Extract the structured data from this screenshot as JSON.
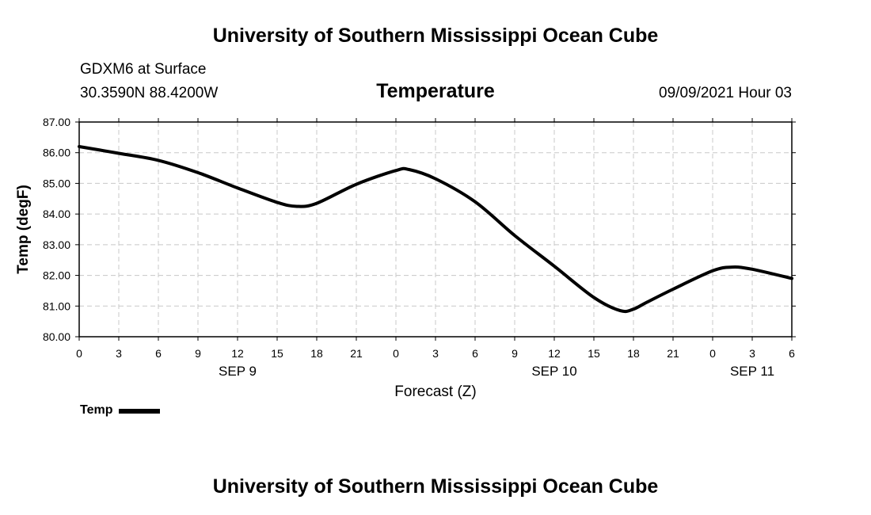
{
  "header": {
    "title": "University of Southern Mississippi Ocean Cube",
    "station": "GDXM6 at Surface",
    "coords": "30.3590N  88.4200W",
    "datetime": "09/09/2021 Hour 03"
  },
  "footer": {
    "title": "University of Southern Mississippi Ocean Cube"
  },
  "legend": {
    "label": "Temp",
    "color": "#000000"
  },
  "chart_data": {
    "type": "line",
    "title": "Temperature",
    "xlabel": "Forecast (Z)",
    "ylabel": "Temp (degF)",
    "xlim": [
      0,
      54
    ],
    "ylim": [
      80,
      87
    ],
    "grid": true,
    "x_ticks": [
      0,
      3,
      6,
      9,
      12,
      15,
      18,
      21,
      24,
      27,
      30,
      33,
      36,
      39,
      42,
      45,
      48,
      51,
      54
    ],
    "x_tick_labels": [
      "0",
      "3",
      "6",
      "9",
      "12",
      "15",
      "18",
      "21",
      "0",
      "3",
      "6",
      "9",
      "12",
      "15",
      "18",
      "21",
      "0",
      "3",
      "6"
    ],
    "y_ticks": [
      80,
      81,
      82,
      83,
      84,
      85,
      86,
      87
    ],
    "y_tick_labels": [
      "80.00",
      "81.00",
      "82.00",
      "83.00",
      "84.00",
      "85.00",
      "86.00",
      "87.00"
    ],
    "date_labels": [
      {
        "x": 12,
        "label": "SEP 9"
      },
      {
        "x": 36,
        "label": "SEP 10"
      },
      {
        "x": 51,
        "label": "SEP 11"
      }
    ],
    "series": [
      {
        "name": "Temp",
        "color": "#000000",
        "x": [
          0,
          3,
          6,
          9,
          12,
          15,
          16.5,
          18,
          21,
          24,
          25,
          27,
          30,
          33,
          36,
          39,
          41,
          42,
          43,
          45,
          48,
          49.5,
          51,
          54
        ],
        "values": [
          86.2,
          85.98,
          85.75,
          85.35,
          84.85,
          84.38,
          84.25,
          84.35,
          84.97,
          85.42,
          85.45,
          85.15,
          84.4,
          83.3,
          82.3,
          81.28,
          80.85,
          80.9,
          81.12,
          81.55,
          82.15,
          82.27,
          82.2,
          81.9
        ]
      }
    ]
  }
}
